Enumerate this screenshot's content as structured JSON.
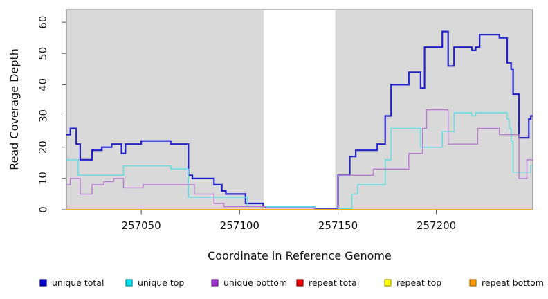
{
  "chart_data": {
    "type": "line",
    "step": true,
    "title": "",
    "xlabel": "Coordinate in Reference Genome",
    "ylabel": "Read Coverage Depth",
    "xlim": [
      257012,
      257249
    ],
    "ylim": [
      0,
      64
    ],
    "x_ticks": [
      "257050",
      "257100",
      "257150",
      "257200"
    ],
    "x_tick_values": [
      257050,
      257100,
      257150,
      257200
    ],
    "y_ticks": [
      "0",
      "10",
      "20",
      "30",
      "40",
      "50",
      "60"
    ],
    "y_tick_values": [
      0,
      10,
      20,
      30,
      40,
      50,
      60
    ],
    "grid": false,
    "legend_position": "bottom",
    "plot_bg_color": "#d9d9d9",
    "gap_band": {
      "from": 257112.2,
      "to": 257148.6,
      "color": "#ffffff"
    },
    "box_color": "#7a7a7a",
    "tick_color": "#444444",
    "series": [
      {
        "name": "unique total",
        "color": "#2222cc",
        "width": 2.2,
        "steps": [
          [
            257012,
            24
          ],
          [
            257014,
            26
          ],
          [
            257017,
            21
          ],
          [
            257019,
            16
          ],
          [
            257025,
            19
          ],
          [
            257030,
            20
          ],
          [
            257035,
            21
          ],
          [
            257040,
            18
          ],
          [
            257042,
            21
          ],
          [
            257050,
            22
          ],
          [
            257065,
            21
          ],
          [
            257074,
            11
          ],
          [
            257076,
            10
          ],
          [
            257087,
            8
          ],
          [
            257091,
            6
          ],
          [
            257093,
            5
          ],
          [
            257103,
            2
          ],
          [
            257112,
            1
          ],
          [
            257138,
            0.3
          ],
          [
            257150,
            11
          ],
          [
            257156,
            17
          ],
          [
            257159,
            19
          ],
          [
            257170,
            21
          ],
          [
            257174,
            30
          ],
          [
            257177,
            40
          ],
          [
            257186,
            44
          ],
          [
            257192,
            39
          ],
          [
            257194,
            52
          ],
          [
            257203,
            57
          ],
          [
            257206,
            46
          ],
          [
            257209,
            52
          ],
          [
            257218,
            51
          ],
          [
            257220,
            52
          ],
          [
            257222,
            56
          ],
          [
            257232,
            55
          ],
          [
            257236,
            47
          ],
          [
            257238,
            45
          ],
          [
            257239,
            37
          ],
          [
            257242,
            23
          ],
          [
            257247,
            29
          ],
          [
            257248,
            30
          ]
        ]
      },
      {
        "name": "unique top",
        "color": "#5fdce2",
        "width": 1.4,
        "steps": [
          [
            257012,
            16
          ],
          [
            257018,
            11
          ],
          [
            257041,
            14
          ],
          [
            257065,
            13
          ],
          [
            257074,
            4
          ],
          [
            257104,
            1
          ],
          [
            257138,
            0
          ],
          [
            257150,
            0.35
          ],
          [
            257157,
            5
          ],
          [
            257160,
            8
          ],
          [
            257174,
            16
          ],
          [
            257177,
            26
          ],
          [
            257192,
            20
          ],
          [
            257203,
            25
          ],
          [
            257209,
            31
          ],
          [
            257218,
            30
          ],
          [
            257220,
            31
          ],
          [
            257236,
            29
          ],
          [
            257237,
            26
          ],
          [
            257238,
            22
          ],
          [
            257239,
            12
          ],
          [
            257248,
            14
          ]
        ]
      },
      {
        "name": "unique bottom",
        "color": "#b678cf",
        "width": 1.4,
        "steps": [
          [
            257012,
            8
          ],
          [
            257014,
            10
          ],
          [
            257019,
            5
          ],
          [
            257025,
            8
          ],
          [
            257031,
            9
          ],
          [
            257036,
            10
          ],
          [
            257041,
            7
          ],
          [
            257051,
            8
          ],
          [
            257077,
            5
          ],
          [
            257087,
            2
          ],
          [
            257092,
            1
          ],
          [
            257113,
            0.5
          ],
          [
            257150,
            11
          ],
          [
            257168,
            13
          ],
          [
            257186,
            18
          ],
          [
            257193,
            26
          ],
          [
            257195,
            32
          ],
          [
            257206,
            21
          ],
          [
            257221,
            26
          ],
          [
            257232,
            24
          ],
          [
            257242,
            10
          ],
          [
            257246,
            16
          ]
        ]
      },
      {
        "name": "repeat total",
        "color": "#dd2222",
        "width": 1.4,
        "steps": [
          [
            257012,
            0
          ]
        ]
      },
      {
        "name": "repeat top",
        "color": "#ffff33",
        "width": 1.4,
        "steps": [
          [
            257012,
            0
          ]
        ]
      },
      {
        "name": "repeat bottom",
        "color": "#ffa500",
        "width": 1.8,
        "steps": [
          [
            257012,
            0
          ]
        ]
      }
    ],
    "legend": [
      {
        "label": "unique total",
        "fill": "#0000cc",
        "border": "#000088"
      },
      {
        "label": "unique top",
        "fill": "#00e0e8",
        "border": "#00899a"
      },
      {
        "label": "unique bottom",
        "fill": "#9933cc",
        "border": "#66208a"
      },
      {
        "label": "repeat total",
        "fill": "#ee0000",
        "border": "#8a0000"
      },
      {
        "label": "repeat top",
        "fill": "#ffff00",
        "border": "#a89a00"
      },
      {
        "label": "repeat bottom",
        "fill": "#ff9900",
        "border": "#a86400"
      }
    ]
  }
}
